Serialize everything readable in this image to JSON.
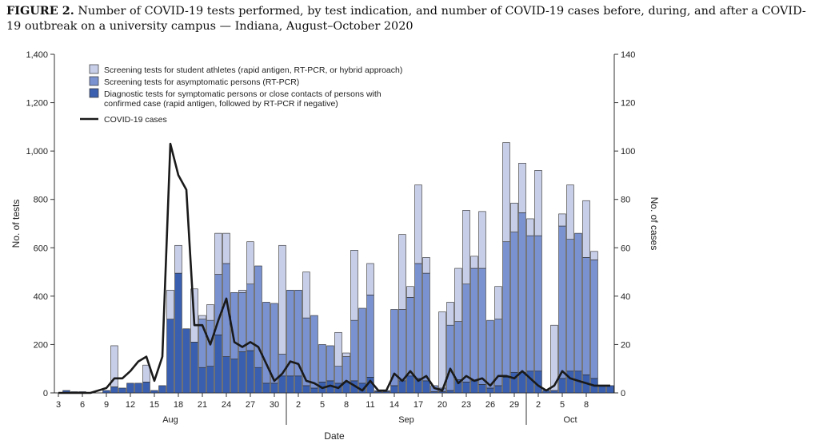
{
  "figure": {
    "label": "FIGURE 2.",
    "title": "Number of COVID-19 tests performed, by test indication, and number of COVID-19 cases before, during, and after a COVID-19 outbreak on a university campus — Indiana, August–October 2020"
  },
  "chart_data": {
    "type": "bar",
    "stacked": true,
    "xlabel": "Date",
    "ylabel": "No. of tests",
    "y2label": "No. of cases",
    "ylim": [
      0,
      1400
    ],
    "y2lim": [
      0,
      140
    ],
    "yticks": [
      "0",
      "200",
      "400",
      "600",
      "800",
      "1,000",
      "1,200",
      "1,400"
    ],
    "y2ticks": [
      "0",
      "20",
      "40",
      "60",
      "80",
      "100",
      "120",
      "140"
    ],
    "xticks": [
      "3",
      "6",
      "9",
      "12",
      "15",
      "18",
      "21",
      "24",
      "27",
      "30",
      "2",
      "5",
      "8",
      "11",
      "14",
      "17",
      "20",
      "23",
      "26",
      "29",
      "2",
      "5",
      "8"
    ],
    "months": [
      "Aug",
      "Sep",
      "Oct"
    ],
    "legend_position": "top-left",
    "dates": [
      "Aug 3",
      "Aug 4",
      "Aug 5",
      "Aug 6",
      "Aug 7",
      "Aug 8",
      "Aug 9",
      "Aug 10",
      "Aug 11",
      "Aug 12",
      "Aug 13",
      "Aug 14",
      "Aug 15",
      "Aug 16",
      "Aug 17",
      "Aug 18",
      "Aug 19",
      "Aug 20",
      "Aug 21",
      "Aug 22",
      "Aug 23",
      "Aug 24",
      "Aug 25",
      "Aug 26",
      "Aug 27",
      "Aug 28",
      "Aug 29",
      "Aug 30",
      "Aug 31",
      "Sep 1",
      "Sep 2",
      "Sep 3",
      "Sep 4",
      "Sep 5",
      "Sep 6",
      "Sep 7",
      "Sep 8",
      "Sep 9",
      "Sep 10",
      "Sep 11",
      "Sep 12",
      "Sep 13",
      "Sep 14",
      "Sep 15",
      "Sep 16",
      "Sep 17",
      "Sep 18",
      "Sep 19",
      "Sep 20",
      "Sep 21",
      "Sep 22",
      "Sep 23",
      "Sep 24",
      "Sep 25",
      "Sep 26",
      "Sep 27",
      "Sep 28",
      "Sep 29",
      "Sep 30",
      "Oct 1",
      "Oct 2",
      "Oct 3",
      "Oct 4",
      "Oct 5",
      "Oct 6",
      "Oct 7",
      "Oct 8",
      "Oct 9",
      "Oct 10",
      "Oct 11"
    ],
    "series": [
      {
        "name": "Diagnostic tests for symptomatic persons or close contacts of persons with confirmed case (rapid antigen, followed by RT-PCR if negative)",
        "color": "#3a5fae",
        "values": [
          0,
          10,
          5,
          5,
          2,
          0,
          10,
          25,
          20,
          40,
          40,
          45,
          10,
          30,
          305,
          495,
          265,
          210,
          105,
          110,
          240,
          150,
          140,
          170,
          175,
          105,
          40,
          40,
          70,
          70,
          70,
          30,
          20,
          45,
          50,
          40,
          45,
          50,
          40,
          65,
          5,
          5,
          30,
          50,
          70,
          60,
          50,
          5,
          5,
          10,
          55,
          45,
          50,
          35,
          20,
          30,
          65,
          85,
          85,
          90,
          90,
          10,
          10,
          60,
          90,
          90,
          75,
          60,
          30,
          30
        ]
      },
      {
        "name": "Screening tests for asymptomatic persons (RT-PCR)",
        "color": "#7a92cf",
        "values": [
          0,
          0,
          0,
          0,
          0,
          0,
          0,
          0,
          0,
          0,
          0,
          0,
          0,
          0,
          0,
          0,
          0,
          0,
          200,
          190,
          250,
          385,
          275,
          245,
          275,
          420,
          335,
          330,
          90,
          355,
          355,
          280,
          300,
          155,
          145,
          70,
          105,
          250,
          310,
          340,
          5,
          5,
          315,
          295,
          325,
          475,
          445,
          25,
          15,
          270,
          240,
          405,
          465,
          480,
          280,
          275,
          560,
          580,
          660,
          560,
          560,
          0,
          0,
          630,
          545,
          570,
          485,
          490,
          0,
          0
        ]
      },
      {
        "name": "Screening tests for student athletes (rapid antigen, RT-PCR, or hybrid approach)",
        "color": "#c7cee8",
        "values": [
          0,
          0,
          0,
          0,
          0,
          0,
          0,
          170,
          0,
          0,
          0,
          70,
          0,
          0,
          120,
          115,
          0,
          220,
          15,
          65,
          170,
          125,
          0,
          10,
          175,
          0,
          0,
          0,
          450,
          0,
          0,
          190,
          0,
          0,
          0,
          140,
          15,
          290,
          0,
          130,
          0,
          0,
          0,
          310,
          45,
          325,
          65,
          0,
          315,
          95,
          220,
          305,
          50,
          235,
          0,
          135,
          410,
          120,
          205,
          70,
          270,
          0,
          270,
          50,
          225,
          0,
          235,
          35,
          0,
          0
        ]
      }
    ],
    "line_series": {
      "name": "COVID-19 cases",
      "color": "#1a1a1a",
      "axis": "right",
      "values": [
        0,
        0,
        0,
        0,
        0,
        1,
        2,
        6,
        6,
        9,
        13,
        15,
        5,
        15,
        103,
        90,
        84,
        28,
        28,
        20,
        30,
        39,
        21,
        19,
        21,
        19,
        12,
        5,
        8,
        13,
        12,
        5,
        4,
        2,
        3,
        2,
        5,
        3,
        1,
        5,
        1,
        1,
        8,
        5,
        9,
        5,
        7,
        2,
        1,
        10,
        4,
        7,
        5,
        6,
        3,
        7,
        7,
        6,
        9,
        6,
        3,
        1,
        3,
        9,
        6,
        5,
        4,
        3,
        3,
        3
      ]
    }
  }
}
